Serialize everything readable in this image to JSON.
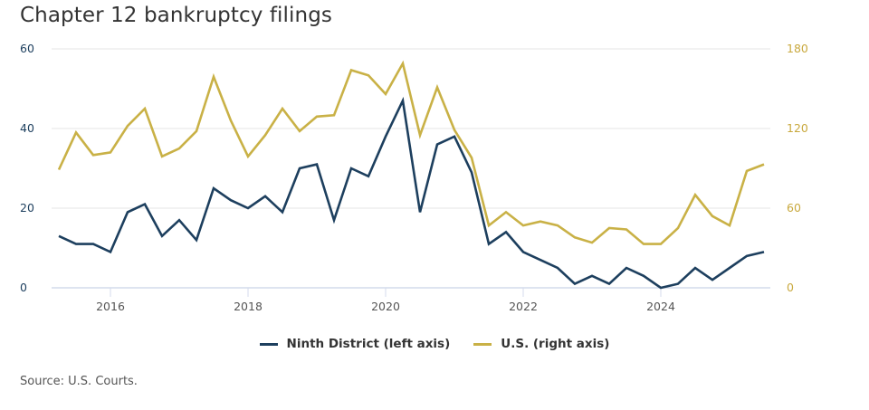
{
  "chart_data": {
    "type": "line",
    "title": "Chapter 12 bankruptcy filings",
    "x": [
      2015.25,
      2015.5,
      2015.75,
      2016.0,
      2016.25,
      2016.5,
      2016.75,
      2017.0,
      2017.25,
      2017.5,
      2017.75,
      2018.0,
      2018.25,
      2018.5,
      2018.75,
      2019.0,
      2019.25,
      2019.5,
      2019.75,
      2020.0,
      2020.25,
      2020.5,
      2020.75,
      2021.0,
      2021.25,
      2021.5,
      2021.75,
      2022.0,
      2022.25,
      2022.5,
      2022.75,
      2023.0,
      2023.25,
      2023.5,
      2023.75,
      2024.0,
      2024.25,
      2024.5,
      2024.75,
      2025.0,
      2025.25,
      2025.5
    ],
    "series": [
      {
        "name": "Ninth District (left axis)",
        "axis": "left",
        "color": "#1d3f5e",
        "values": [
          13,
          11,
          11,
          9,
          19,
          21,
          13,
          17,
          12,
          25,
          22,
          20,
          23,
          19,
          30,
          31,
          17,
          30,
          28,
          38,
          47,
          19,
          36,
          38,
          29,
          11,
          14,
          9,
          7,
          5,
          1,
          3,
          1,
          5,
          3,
          0,
          1,
          5,
          2,
          5,
          8,
          9
        ]
      },
      {
        "name": "U.S. (right axis)",
        "axis": "right",
        "color": "#c9b146",
        "values": [
          89,
          117,
          100,
          102,
          122,
          135,
          99,
          105,
          118,
          159,
          126,
          99,
          115,
          135,
          118,
          129,
          130,
          164,
          160,
          146,
          169,
          115,
          151,
          119,
          98,
          47,
          57,
          47,
          50,
          47,
          38,
          34,
          45,
          44,
          33,
          33,
          45,
          70,
          54,
          47,
          88,
          93
        ]
      }
    ],
    "x_ticks": [
      "2016",
      "2018",
      "2020",
      "2022",
      "2024"
    ],
    "x_tick_values": [
      2016,
      2018,
      2020,
      2022,
      2024
    ],
    "y_left": {
      "ticks": [
        "0",
        "20",
        "40",
        "60"
      ],
      "tick_values": [
        0,
        20,
        40,
        60
      ],
      "ylim": [
        0,
        60
      ]
    },
    "y_right": {
      "ticks": [
        "0",
        "60",
        "120",
        "180"
      ],
      "tick_values": [
        0,
        60,
        120,
        180
      ],
      "ylim": [
        0,
        180
      ]
    },
    "xlim": [
      2015.25,
      2025.5
    ],
    "grid": true,
    "legend_position": "bottom-center"
  },
  "legend": {
    "items": [
      {
        "label": "Ninth District (left axis)",
        "color": "#1d3f5e"
      },
      {
        "label": "U.S. (right axis)",
        "color": "#c9b146"
      }
    ]
  },
  "source": "Source: U.S. Courts."
}
